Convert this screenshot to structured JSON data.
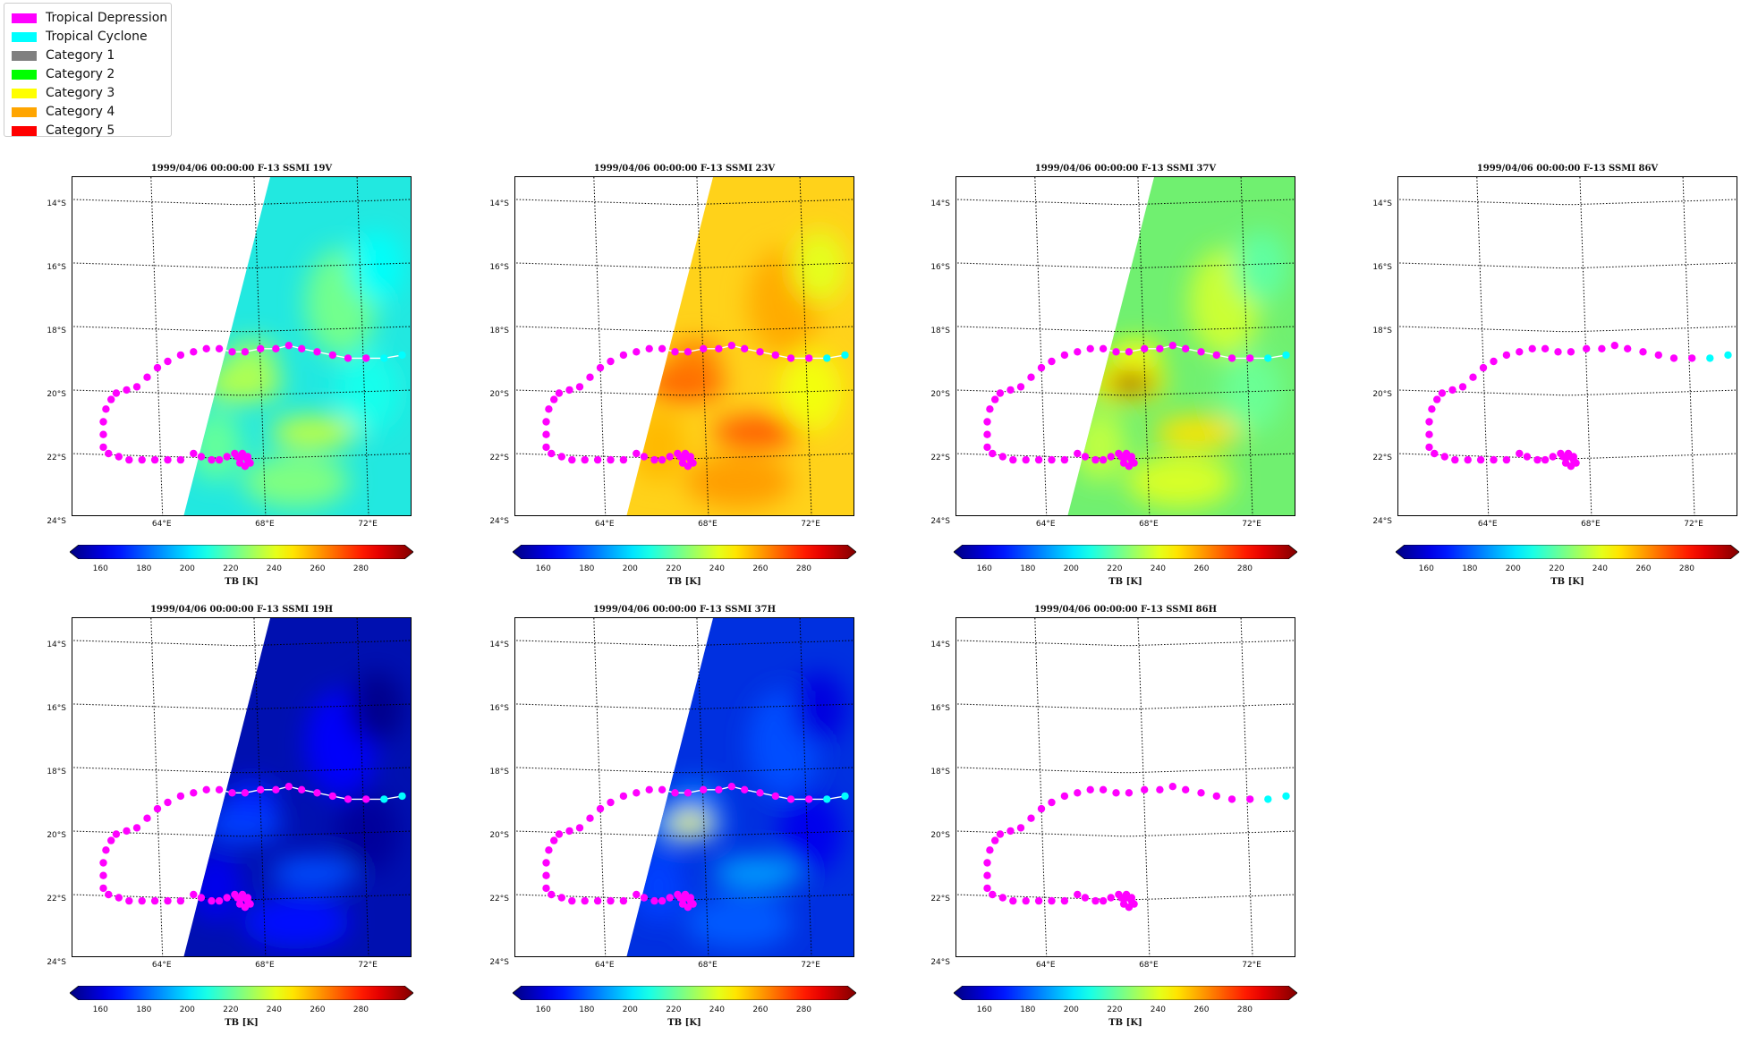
{
  "legend": [
    {
      "label": "Tropical Depression",
      "color": "#ff00ff"
    },
    {
      "label": "Tropical Cyclone",
      "color": "#00ffff"
    },
    {
      "label": "Category 1",
      "color": "#808080"
    },
    {
      "label": "Category 2",
      "color": "#00ff00"
    },
    {
      "label": "Category 3",
      "color": "#ffff00"
    },
    {
      "label": "Category 4",
      "color": "#ffa500"
    },
    {
      "label": "Category 5",
      "color": "#ff0000"
    }
  ],
  "lat_labels": [
    "14°S",
    "16°S",
    "18°S",
    "20°S",
    "22°S",
    "24°S"
  ],
  "lon_labels": [
    "64°E",
    "68°E",
    "72°E"
  ],
  "colorbar": {
    "ticks": [
      "160",
      "180",
      "200",
      "220",
      "240",
      "260",
      "280"
    ],
    "label": "TB [K]",
    "min": 150,
    "max": 300
  },
  "panels": [
    {
      "title": "1999/04/06 00:00:00  F-13 SSMI 19V",
      "channel": "19V",
      "has_data": true,
      "base_tb": 215,
      "swath_color": "#22e8e0"
    },
    {
      "title": "1999/04/06 00:00:00  F-13 SSMI 23V",
      "channel": "23V",
      "has_data": true,
      "base_tb": 248,
      "swath_color": "#ffd21a"
    },
    {
      "title": "1999/04/06 00:00:00  F-13 SSMI 37V",
      "channel": "37V",
      "has_data": true,
      "base_tb": 228,
      "swath_color": "#70f070"
    },
    {
      "title": "1999/04/06 00:00:00  F-13 SSMI 86V",
      "channel": "86V",
      "has_data": false,
      "base_tb": 0,
      "swath_color": "#ffffff"
    },
    {
      "title": "1999/04/06 00:00:00  F-13 SSMI 19H",
      "channel": "19H",
      "has_data": true,
      "base_tb": 160,
      "swath_color": "#0010b0"
    },
    {
      "title": "1999/04/06 00:00:00  F-13 SSMI 37H",
      "channel": "37H",
      "has_data": true,
      "base_tb": 172,
      "swath_color": "#0030e0"
    },
    {
      "title": "1999/04/06 00:00:00  F-13 SSMI 86H",
      "channel": "86H",
      "has_data": false,
      "base_tb": 0,
      "swath_color": "#ffffff"
    }
  ],
  "track": {
    "points_lonlat": [
      [
        73.5,
        -18.9
      ],
      [
        72.8,
        -19.0
      ],
      [
        72.1,
        -19.0
      ],
      [
        71.4,
        -19.0
      ],
      [
        70.8,
        -18.9
      ],
      [
        70.2,
        -18.8
      ],
      [
        69.6,
        -18.7
      ],
      [
        69.1,
        -18.6
      ],
      [
        68.6,
        -18.7
      ],
      [
        68.0,
        -18.7
      ],
      [
        67.4,
        -18.8
      ],
      [
        66.9,
        -18.8
      ],
      [
        66.4,
        -18.7
      ],
      [
        65.9,
        -18.7
      ],
      [
        65.4,
        -18.8
      ],
      [
        64.9,
        -18.9
      ],
      [
        64.4,
        -19.1
      ],
      [
        64.0,
        -19.3
      ],
      [
        63.6,
        -19.6
      ],
      [
        63.2,
        -19.9
      ],
      [
        62.8,
        -20.0
      ],
      [
        62.4,
        -20.1
      ],
      [
        62.2,
        -20.3
      ],
      [
        62.0,
        -20.6
      ],
      [
        61.9,
        -21.0
      ],
      [
        61.9,
        -21.4
      ],
      [
        61.9,
        -21.8
      ],
      [
        62.1,
        -22.0
      ],
      [
        62.5,
        -22.1
      ],
      [
        62.9,
        -22.2
      ],
      [
        63.4,
        -22.2
      ],
      [
        63.9,
        -22.2
      ],
      [
        64.4,
        -22.2
      ],
      [
        64.9,
        -22.2
      ],
      [
        65.4,
        -22.0
      ],
      [
        65.7,
        -22.1
      ],
      [
        66.1,
        -22.2
      ],
      [
        66.4,
        -22.2
      ],
      [
        66.7,
        -22.1
      ],
      [
        67.0,
        -22.0
      ],
      [
        67.3,
        -22.0
      ],
      [
        67.5,
        -22.1
      ],
      [
        67.6,
        -22.3
      ],
      [
        67.4,
        -22.4
      ],
      [
        67.2,
        -22.3
      ],
      [
        67.1,
        -22.1
      ],
      [
        67.3,
        -22.1
      ],
      [
        67.5,
        -22.2
      ]
    ],
    "classes": [
      "Tropical Cyclone",
      "Tropical Cyclone",
      "Tropical Depression"
    ]
  }
}
